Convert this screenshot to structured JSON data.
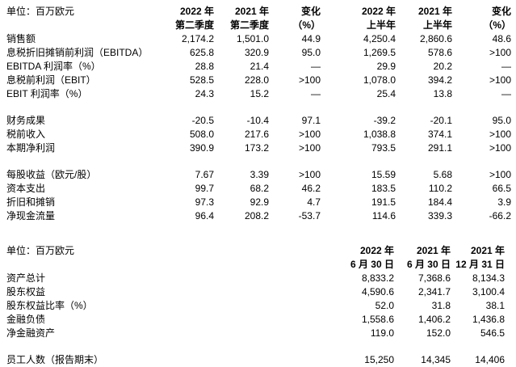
{
  "table1": {
    "unit_label": "单位：百万欧元",
    "col_headers": [
      {
        "line1": "2022 年",
        "line2": "第二季度"
      },
      {
        "line1": "2021 年",
        "line2": "第二季度"
      },
      {
        "line1": "变化",
        "line2": "（%）"
      },
      {
        "line1": "2022 年",
        "line2": "上半年"
      },
      {
        "line1": "2021 年",
        "line2": "上半年"
      },
      {
        "line1": "变化",
        "line2": "（%）"
      }
    ],
    "rows": [
      {
        "label": "销售额",
        "values": [
          "2,174.2",
          "1,501.0",
          "44.9",
          "4,250.4",
          "2,860.6",
          "48.6"
        ]
      },
      {
        "label": "息税折旧摊销前利润（EBITDA）",
        "values": [
          "625.8",
          "320.9",
          "95.0",
          "1,269.5",
          "578.6",
          ">100"
        ]
      },
      {
        "label": "EBITDA 利润率（%）",
        "values": [
          "28.8",
          "21.4",
          "—",
          "29.9",
          "20.2",
          "—"
        ]
      },
      {
        "label": "息税前利润（EBIT）",
        "values": [
          "528.5",
          "228.0",
          ">100",
          "1,078.0",
          "394.2",
          ">100"
        ]
      },
      {
        "label": "EBIT 利润率（%）",
        "values": [
          "24.3",
          "15.2",
          "—",
          "25.4",
          "13.8",
          "—"
        ]
      },
      {
        "spacer": true
      },
      {
        "label": "财务成果",
        "values": [
          "-20.5",
          "-10.4",
          "97.1",
          "-39.2",
          "-20.1",
          "95.0"
        ]
      },
      {
        "label": "税前收入",
        "values": [
          "508.0",
          "217.6",
          ">100",
          "1,038.8",
          "374.1",
          ">100"
        ]
      },
      {
        "label": "本期净利润",
        "values": [
          "390.9",
          "173.2",
          ">100",
          "793.5",
          "291.1",
          ">100"
        ]
      },
      {
        "spacer": true
      },
      {
        "label": "每股收益（欧元/股）",
        "values": [
          "7.67",
          "3.39",
          ">100",
          "15.59",
          "5.68",
          ">100"
        ]
      },
      {
        "label": "资本支出",
        "values": [
          "99.7",
          "68.2",
          "46.2",
          "183.5",
          "110.2",
          "66.5"
        ]
      },
      {
        "label": "折旧和摊销",
        "values": [
          "97.3",
          "92.9",
          "4.7",
          "191.5",
          "184.4",
          "3.9"
        ]
      },
      {
        "label": "净现金流量",
        "values": [
          "96.4",
          "208.2",
          "-53.7",
          "114.6",
          "339.3",
          "-66.2"
        ]
      }
    ]
  },
  "table2": {
    "unit_label": "单位：百万欧元",
    "col_headers": [
      {
        "line1": "2022 年",
        "line2": "6 月 30 日"
      },
      {
        "line1": "2021 年",
        "line2": "6 月 30 日"
      },
      {
        "line1": "2021 年",
        "line2": "12 月 31 日"
      }
    ],
    "rows": [
      {
        "label": "资产总计",
        "values": [
          "8,833.2",
          "7,368.6",
          "8,134.3"
        ]
      },
      {
        "label": "股东权益",
        "values": [
          "4,590.6",
          "2,341.7",
          "3,100.4"
        ]
      },
      {
        "label": "股东权益比率（%）",
        "values": [
          "52.0",
          "31.8",
          "38.1"
        ]
      },
      {
        "label": "金融负债",
        "values": [
          "1,558.6",
          "1,406.2",
          "1,436.8"
        ]
      },
      {
        "label": "净金融资产",
        "values": [
          "119.0",
          "152.0",
          "546.5"
        ]
      },
      {
        "spacer": true
      },
      {
        "label": "员工人数（报告期末）",
        "values": [
          "15,250",
          "14,345",
          "14,406"
        ]
      }
    ]
  }
}
